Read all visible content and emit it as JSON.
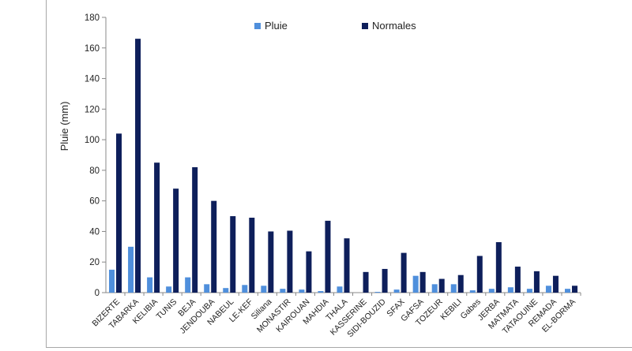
{
  "chart_data": {
    "type": "bar",
    "ylabel": "Pluie (mm)",
    "ylim": [
      0,
      180
    ],
    "yticks": [
      0,
      20,
      40,
      60,
      80,
      100,
      120,
      140,
      160,
      180
    ],
    "grid": false,
    "legend_position": "top",
    "categories": [
      "BIZERTE",
      "TABARKA",
      "KELIBIA",
      "TUNIS",
      "BEJA",
      "JENDOUBA",
      "NABEUL",
      "LE-KEF",
      "Siliana",
      "MONASTIR",
      "KAIROUAN",
      "MAHDIA",
      "THALA",
      "KASSERINE",
      "SIDI-BOUZID",
      "SFAX",
      "GAFSA",
      "TOZEUR",
      "KEBILI",
      "Gabes",
      "JERBA",
      "MATMATA",
      "TATAOUINE",
      "REMADA",
      "EL-BORMA"
    ],
    "series": [
      {
        "name": "Pluie",
        "color": "#4f8fdc",
        "values": [
          15,
          30,
          10,
          4,
          10,
          5.5,
          3,
          5,
          4.5,
          2.5,
          2,
          1,
          4,
          0,
          0.5,
          2,
          11,
          5.5,
          5.5,
          1.5,
          2.5,
          3.5,
          2.5,
          4.5,
          2.5
        ]
      },
      {
        "name": "Normales",
        "color": "#0e1f5b",
        "values": [
          104,
          166,
          85,
          68,
          82,
          60,
          50,
          49,
          40,
          40.5,
          27,
          47,
          35.5,
          13.5,
          15.5,
          26,
          13.5,
          9,
          11.5,
          24,
          33,
          17,
          14,
          11,
          4.5
        ]
      }
    ]
  }
}
